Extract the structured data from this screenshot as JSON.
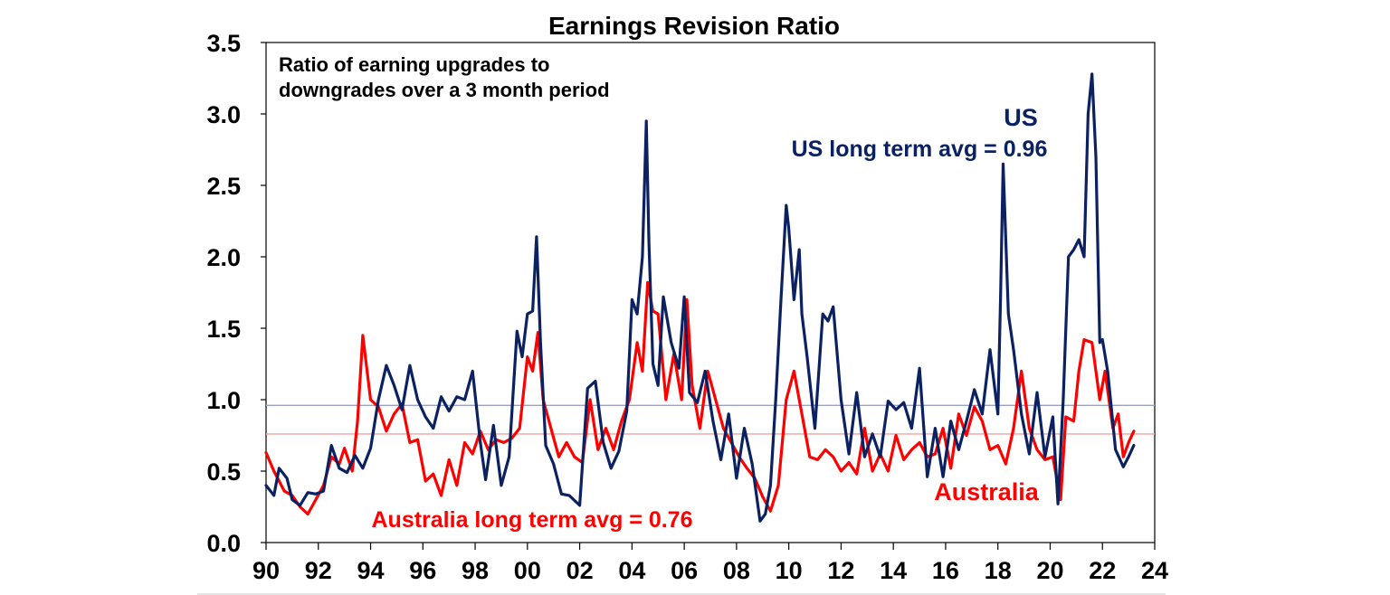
{
  "chart_data": {
    "type": "line",
    "title": "Earnings Revision Ratio",
    "annotation_lines": [
      "Ratio of earning upgrades to",
      "downgrades over a 3 month period"
    ],
    "xlabel": "",
    "ylabel": "",
    "xlim": [
      1990,
      2024
    ],
    "ylim": [
      0,
      3.5
    ],
    "x_ticks": [
      1990,
      1992,
      1994,
      1996,
      1998,
      2000,
      2002,
      2004,
      2006,
      2008,
      2010,
      2012,
      2014,
      2016,
      2018,
      2020,
      2022,
      2024
    ],
    "x_tick_labels": [
      "90",
      "92",
      "94",
      "96",
      "98",
      "00",
      "02",
      "04",
      "06",
      "08",
      "10",
      "12",
      "14",
      "16",
      "18",
      "20",
      "22",
      "24"
    ],
    "y_ticks": [
      0,
      0.5,
      1.0,
      1.5,
      2.0,
      2.5,
      3.0,
      3.5
    ],
    "y_tick_labels": [
      "0.0",
      "0.5",
      "1.0",
      "1.5",
      "2.0",
      "2.5",
      "3.0",
      "3.5"
    ],
    "grid": false,
    "reference_lines": [
      {
        "name": "US long term avg",
        "value": 0.96,
        "label": "US long term avg = 0.96",
        "color": "#9aa0c6"
      },
      {
        "name": "Australia long term avg",
        "value": 0.76,
        "label": "Australia long term avg = 0.76",
        "color": "#f4a0a0"
      }
    ],
    "series": [
      {
        "name": "US",
        "color": "#0b2161",
        "x": [
          1990.0,
          1990.3,
          1990.5,
          1990.8,
          1991.0,
          1991.3,
          1991.6,
          1991.9,
          1992.2,
          1992.5,
          1992.8,
          1993.1,
          1993.4,
          1993.7,
          1994.0,
          1994.3,
          1994.6,
          1994.9,
          1995.2,
          1995.5,
          1995.8,
          1996.1,
          1996.4,
          1996.7,
          1997.0,
          1997.3,
          1997.6,
          1997.9,
          1998.2,
          1998.4,
          1998.7,
          1999.0,
          1999.3,
          1999.6,
          1999.8,
          2000.0,
          2000.2,
          2000.35,
          2000.5,
          2000.7,
          2001.0,
          2001.3,
          2001.6,
          2002.0,
          2002.3,
          2002.6,
          2002.9,
          2003.2,
          2003.5,
          2003.8,
          2004.0,
          2004.2,
          2004.4,
          2004.55,
          2004.65,
          2004.8,
          2005.0,
          2005.2,
          2005.5,
          2005.8,
          2006.0,
          2006.2,
          2006.5,
          2006.8,
          2007.1,
          2007.4,
          2007.7,
          2008.0,
          2008.3,
          2008.6,
          2008.9,
          2009.1,
          2009.3,
          2009.5,
          2009.7,
          2009.9,
          2010.0,
          2010.2,
          2010.4,
          2010.5,
          2010.7,
          2011.0,
          2011.3,
          2011.5,
          2011.7,
          2012.0,
          2012.3,
          2012.6,
          2012.9,
          2013.2,
          2013.5,
          2013.8,
          2014.1,
          2014.4,
          2014.7,
          2015.0,
          2015.3,
          2015.6,
          2015.9,
          2016.2,
          2016.5,
          2016.8,
          2017.1,
          2017.4,
          2017.7,
          2018.0,
          2018.1,
          2018.2,
          2018.4,
          2018.6,
          2018.9,
          2019.2,
          2019.5,
          2019.8,
          2020.1,
          2020.3,
          2020.5,
          2020.7,
          2020.9,
          2021.1,
          2021.3,
          2021.45,
          2021.6,
          2021.75,
          2021.9,
          2022.0,
          2022.2,
          2022.5,
          2022.8,
          2023.0,
          2023.2
        ],
        "values": [
          0.4,
          0.33,
          0.52,
          0.45,
          0.3,
          0.26,
          0.35,
          0.34,
          0.36,
          0.68,
          0.52,
          0.49,
          0.61,
          0.52,
          0.66,
          1.0,
          1.24,
          1.1,
          0.93,
          1.24,
          1.0,
          0.88,
          0.8,
          1.02,
          0.92,
          1.02,
          1.0,
          1.2,
          0.7,
          0.44,
          0.82,
          0.4,
          0.6,
          1.48,
          1.3,
          1.6,
          1.62,
          2.14,
          1.4,
          0.68,
          0.55,
          0.34,
          0.33,
          0.26,
          1.08,
          1.13,
          0.7,
          0.52,
          0.64,
          0.92,
          1.7,
          1.6,
          2.0,
          2.95,
          2.1,
          1.25,
          1.1,
          1.72,
          1.4,
          1.22,
          1.72,
          1.05,
          0.98,
          1.2,
          0.85,
          0.58,
          0.9,
          0.45,
          0.8,
          0.55,
          0.15,
          0.2,
          0.4,
          1.0,
          1.7,
          2.36,
          2.2,
          1.7,
          2.05,
          1.6,
          1.3,
          0.8,
          1.6,
          1.55,
          1.65,
          1.0,
          0.62,
          1.05,
          0.6,
          0.76,
          0.6,
          0.99,
          0.93,
          0.98,
          0.8,
          1.22,
          0.46,
          0.8,
          0.46,
          0.85,
          0.65,
          0.85,
          1.07,
          0.9,
          1.35,
          0.9,
          1.7,
          2.65,
          1.6,
          1.35,
          0.9,
          0.62,
          1.05,
          0.6,
          0.88,
          0.27,
          1.0,
          2.0,
          2.05,
          2.12,
          2.0,
          3.0,
          3.28,
          2.7,
          1.4,
          1.42,
          1.2,
          0.65,
          0.53,
          0.6,
          0.68
        ]
      },
      {
        "name": "Australia",
        "color": "#ff0000",
        "x": [
          1990.0,
          1990.3,
          1990.7,
          1991.0,
          1991.3,
          1991.6,
          1991.9,
          1992.2,
          1992.5,
          1992.8,
          1993.0,
          1993.3,
          1993.5,
          1993.7,
          1994.0,
          1994.3,
          1994.6,
          1994.9,
          1995.2,
          1995.5,
          1995.8,
          1996.1,
          1996.4,
          1996.7,
          1997.0,
          1997.3,
          1997.6,
          1997.9,
          1998.2,
          1998.5,
          1998.8,
          1999.1,
          1999.4,
          1999.7,
          2000.0,
          2000.2,
          2000.4,
          2000.6,
          2000.9,
          2001.2,
          2001.5,
          2001.8,
          2002.1,
          2002.4,
          2002.7,
          2003.0,
          2003.3,
          2003.6,
          2003.9,
          2004.2,
          2004.4,
          2004.6,
          2004.8,
          2005.0,
          2005.3,
          2005.6,
          2005.9,
          2006.1,
          2006.3,
          2006.6,
          2006.9,
          2007.2,
          2007.5,
          2007.8,
          2008.1,
          2008.4,
          2008.7,
          2009.0,
          2009.3,
          2009.6,
          2009.9,
          2010.2,
          2010.5,
          2010.8,
          2011.1,
          2011.4,
          2011.7,
          2012.0,
          2012.3,
          2012.6,
          2012.9,
          2013.2,
          2013.5,
          2013.8,
          2014.1,
          2014.4,
          2014.7,
          2015.0,
          2015.3,
          2015.6,
          2015.9,
          2016.2,
          2016.5,
          2016.8,
          2017.1,
          2017.4,
          2017.7,
          2018.0,
          2018.3,
          2018.6,
          2018.9,
          2019.2,
          2019.5,
          2019.8,
          2020.1,
          2020.4,
          2020.6,
          2020.9,
          2021.1,
          2021.3,
          2021.6,
          2021.9,
          2022.1,
          2022.4,
          2022.6,
          2022.8,
          2023.0,
          2023.2
        ],
        "values": [
          0.63,
          0.5,
          0.36,
          0.33,
          0.25,
          0.2,
          0.3,
          0.4,
          0.6,
          0.55,
          0.66,
          0.5,
          0.85,
          1.45,
          1.0,
          0.95,
          0.78,
          0.9,
          0.97,
          0.7,
          0.72,
          0.43,
          0.48,
          0.33,
          0.58,
          0.4,
          0.7,
          0.62,
          0.78,
          0.65,
          0.72,
          0.7,
          0.73,
          0.8,
          1.3,
          1.2,
          1.47,
          1.0,
          0.8,
          0.6,
          0.7,
          0.6,
          0.56,
          1.0,
          0.65,
          0.8,
          0.65,
          0.85,
          1.0,
          1.4,
          1.2,
          1.82,
          1.62,
          1.6,
          1.0,
          1.32,
          1.0,
          1.7,
          1.1,
          0.8,
          1.2,
          1.0,
          0.8,
          0.7,
          0.6,
          0.52,
          0.45,
          0.32,
          0.22,
          0.4,
          1.0,
          1.2,
          0.9,
          0.6,
          0.58,
          0.65,
          0.6,
          0.5,
          0.56,
          0.48,
          0.8,
          0.5,
          0.62,
          0.5,
          0.75,
          0.58,
          0.65,
          0.7,
          0.6,
          0.62,
          0.8,
          0.52,
          0.9,
          0.75,
          0.95,
          0.85,
          0.65,
          0.68,
          0.55,
          0.8,
          1.2,
          0.8,
          0.65,
          0.58,
          0.6,
          0.3,
          0.88,
          0.85,
          1.2,
          1.42,
          1.4,
          1.0,
          1.2,
          0.8,
          0.9,
          0.6,
          0.7,
          0.78
        ]
      }
    ],
    "series_labels": [
      {
        "text": "US",
        "color": "#0b2161"
      },
      {
        "text": "US long term avg = 0.96",
        "color": "#0b2161"
      },
      {
        "text": "Australia",
        "color": "#ff0000"
      },
      {
        "text": "Australia long term avg = 0.76",
        "color": "#ff0000"
      }
    ]
  }
}
